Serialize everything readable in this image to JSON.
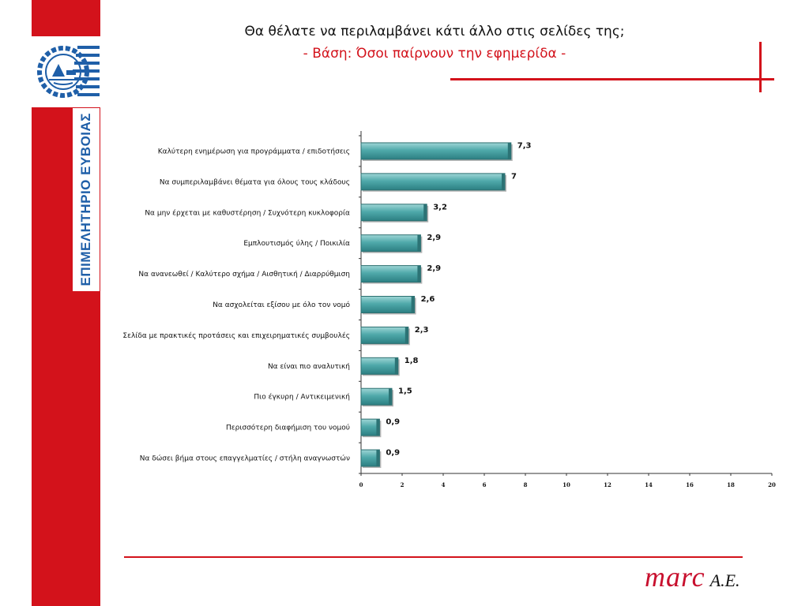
{
  "header": {
    "title": "Θα θέλατε να περιλαμβάνει κάτι άλλο στις σελίδες της;",
    "subtitle": "- Βάση: Όσοι παίρνουν την εφημερίδα -"
  },
  "sidebar": {
    "vertical_label": "ΕΠΙΜΕΛΗΤΗΡΙΟ ΕΥΒΟΙΑΣ"
  },
  "brand": {
    "name": "marc",
    "suffix": "A.E."
  },
  "colors": {
    "accent": "#d3121b",
    "bar": "#3f9ea0"
  },
  "chart_data": {
    "type": "bar",
    "orientation": "horizontal",
    "categories": [
      "Καλύτερη ενημέρωση για προγράμματα / επιδοτήσεις",
      "Να συμπεριλαμβάνει θέματα για όλους τους κλάδους",
      "Να μην έρχεται με καθυστέρηση / Συχνότερη κυκλοφορία",
      "Εμπλουτισμός ύλης / Ποικιλία",
      "Να ανανεωθεί / Καλύτερο σχήμα / Αισθητική / Διαρρύθμιση",
      "Να ασχολείται εξίσου με όλο τον νομό",
      "Σελίδα με πρακτικές προτάσεις και επιχειρηματικές συμβουλές",
      "Να είναι πιο αναλυτική",
      "Πιο έγκυρη / Αντικειμενική",
      "Περισσότερη διαφήμιση του νομού",
      "Να δώσει βήμα στους επαγγελματίες / στήλη αναγνωστών"
    ],
    "values": [
      7.3,
      7,
      3.2,
      2.9,
      2.9,
      2.6,
      2.3,
      1.8,
      1.5,
      0.9,
      0.9
    ],
    "value_labels": [
      "7,3",
      "7",
      "3,2",
      "2,9",
      "2,9",
      "2,6",
      "2,3",
      "1,8",
      "1,5",
      "0,9",
      "0,9"
    ],
    "xlim": [
      0,
      20
    ],
    "xticks": [
      0,
      2,
      4,
      6,
      8,
      10,
      12,
      14,
      16,
      18,
      20
    ],
    "xlabel": "",
    "ylabel": "",
    "grid": false,
    "legend": "none"
  }
}
